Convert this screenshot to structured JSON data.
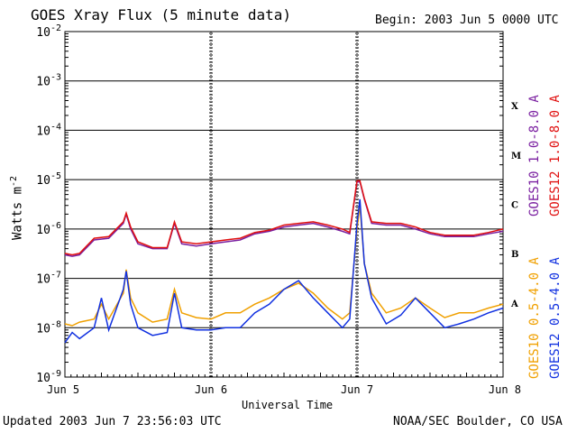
{
  "header": {
    "title": "GOES Xray Flux (5 minute data)",
    "begin": "Begin:  2003 Jun 5 0000 UTC"
  },
  "footer": {
    "updated": "Updated 2003 Jun  7 23:56:03 UTC",
    "credit": "NOAA/SEC Boulder, CO USA"
  },
  "colors": {
    "goes10_long": "#7a1fa0",
    "goes12_long": "#e01010",
    "goes10_short": "#f0a000",
    "goes12_short": "#1030e0"
  },
  "chart_data": {
    "type": "line",
    "title": "GOES Xray Flux (5 minute data)",
    "xlabel": "Universal Time",
    "ylabel": "Watts m",
    "ylabel_sup": "-2",
    "y_scale": "log",
    "ylim": [
      1e-09,
      0.01
    ],
    "y_ticks": [
      {
        "base": "10",
        "exp": "-9",
        "value": 1e-09
      },
      {
        "base": "10",
        "exp": "-8",
        "value": 1e-08
      },
      {
        "base": "10",
        "exp": "-7",
        "value": 1e-07
      },
      {
        "base": "10",
        "exp": "-6",
        "value": 1e-06
      },
      {
        "base": "10",
        "exp": "-5",
        "value": 1e-05
      },
      {
        "base": "10",
        "exp": "-4",
        "value": 0.0001
      },
      {
        "base": "10",
        "exp": "-3",
        "value": 0.001
      },
      {
        "base": "10",
        "exp": "-2",
        "value": 0.01
      }
    ],
    "x_ticks": [
      "Jun 5",
      "Jun 6",
      "Jun 7",
      "Jun 8"
    ],
    "x_range_days": [
      0,
      3
    ],
    "flare_classes": [
      {
        "label": "A",
        "lo": 1e-08,
        "hi": 1e-07
      },
      {
        "label": "B",
        "lo": 1e-07,
        "hi": 1e-06
      },
      {
        "label": "C",
        "lo": 1e-06,
        "hi": 1e-05
      },
      {
        "label": "M",
        "lo": 1e-05,
        "hi": 0.0001
      },
      {
        "label": "X",
        "lo": 0.0001,
        "hi": 0.001
      }
    ],
    "series": [
      {
        "name": "GOES10 1.0-8.0 A",
        "color": "#7a1fa0",
        "x": [
          0,
          0.05,
          0.1,
          0.2,
          0.3,
          0.4,
          0.42,
          0.45,
          0.5,
          0.6,
          0.7,
          0.75,
          0.8,
          0.9,
          1.0,
          1.1,
          1.2,
          1.3,
          1.4,
          1.5,
          1.6,
          1.7,
          1.8,
          1.9,
          1.95,
          2.0,
          2.02,
          2.05,
          2.1,
          2.2,
          2.3,
          2.4,
          2.5,
          2.6,
          2.7,
          2.8,
          2.9,
          3.0
        ],
        "values": [
          3e-07,
          2.8e-07,
          3e-07,
          6e-07,
          6.5e-07,
          1.3e-06,
          2e-06,
          1e-06,
          5e-07,
          4e-07,
          4e-07,
          1.3e-06,
          5e-07,
          4.5e-07,
          5e-07,
          5.5e-07,
          6e-07,
          8e-07,
          9e-07,
          1.1e-06,
          1.2e-06,
          1.3e-06,
          1.1e-06,
          9e-07,
          8e-07,
          9e-06,
          9e-06,
          4e-06,
          1.3e-06,
          1.2e-06,
          1.2e-06,
          1e-06,
          8e-07,
          7e-07,
          7e-07,
          7e-07,
          8e-07,
          9e-07
        ]
      },
      {
        "name": "GOES12 1.0-8.0 A",
        "color": "#e01010",
        "x": [
          0,
          0.05,
          0.1,
          0.2,
          0.3,
          0.4,
          0.42,
          0.45,
          0.5,
          0.6,
          0.7,
          0.75,
          0.8,
          0.9,
          1.0,
          1.1,
          1.2,
          1.3,
          1.4,
          1.5,
          1.6,
          1.7,
          1.8,
          1.9,
          1.95,
          2.0,
          2.02,
          2.05,
          2.1,
          2.2,
          2.3,
          2.4,
          2.5,
          2.6,
          2.7,
          2.8,
          2.9,
          3.0
        ],
        "values": [
          3.2e-07,
          3e-07,
          3.2e-07,
          6.5e-07,
          7e-07,
          1.4e-06,
          2.1e-06,
          1.1e-06,
          5.5e-07,
          4.2e-07,
          4.2e-07,
          1.4e-06,
          5.5e-07,
          5e-07,
          5.5e-07,
          6e-07,
          6.5e-07,
          8.5e-07,
          9.5e-07,
          1.2e-06,
          1.3e-06,
          1.4e-06,
          1.2e-06,
          1e-06,
          8.5e-07,
          9.5e-06,
          9.5e-06,
          4.2e-06,
          1.4e-06,
          1.3e-06,
          1.3e-06,
          1.1e-06,
          8.5e-07,
          7.5e-07,
          7.5e-07,
          7.5e-07,
          8.5e-07,
          1e-06
        ]
      },
      {
        "name": "GOES10 0.5-4.0 A",
        "color": "#f0a000",
        "x": [
          0,
          0.05,
          0.1,
          0.2,
          0.25,
          0.3,
          0.4,
          0.42,
          0.45,
          0.5,
          0.6,
          0.7,
          0.75,
          0.8,
          0.9,
          1.0,
          1.1,
          1.2,
          1.3,
          1.4,
          1.5,
          1.6,
          1.7,
          1.8,
          1.9,
          1.95,
          2.0,
          2.02,
          2.05,
          2.1,
          2.2,
          2.3,
          2.4,
          2.5,
          2.6,
          2.7,
          2.8,
          2.9,
          3.0
        ],
        "values": [
          1.2e-08,
          1.1e-08,
          1.3e-08,
          1.5e-08,
          3e-08,
          1.5e-08,
          5e-08,
          1.5e-07,
          4e-08,
          2e-08,
          1.3e-08,
          1.5e-08,
          6e-08,
          2e-08,
          1.6e-08,
          1.5e-08,
          2e-08,
          2e-08,
          3e-08,
          4e-08,
          6e-08,
          8e-08,
          5e-08,
          2.5e-08,
          1.5e-08,
          2e-08,
          1e-06,
          3e-06,
          2e-07,
          5e-08,
          2e-08,
          2.5e-08,
          4e-08,
          2.5e-08,
          1.6e-08,
          2e-08,
          2e-08,
          2.5e-08,
          3e-08
        ]
      },
      {
        "name": "GOES12 0.5-4.0 A",
        "color": "#1030e0",
        "x": [
          0,
          0.05,
          0.1,
          0.2,
          0.25,
          0.3,
          0.4,
          0.42,
          0.45,
          0.5,
          0.6,
          0.7,
          0.75,
          0.8,
          0.9,
          1.0,
          1.1,
          1.2,
          1.3,
          1.4,
          1.5,
          1.6,
          1.7,
          1.8,
          1.9,
          1.95,
          2.0,
          2.02,
          2.05,
          2.1,
          2.2,
          2.3,
          2.4,
          2.5,
          2.6,
          2.7,
          2.8,
          2.9,
          3.0
        ],
        "values": [
          5e-09,
          8e-09,
          6e-09,
          1e-08,
          4e-08,
          9e-09,
          6e-08,
          1.4e-07,
          3e-08,
          1e-08,
          7e-09,
          8e-09,
          5e-08,
          1e-08,
          9e-09,
          9e-09,
          1e-08,
          1e-08,
          2e-08,
          3e-08,
          6e-08,
          9e-08,
          4e-08,
          2e-08,
          1e-08,
          1.5e-08,
          1.3e-06,
          4e-06,
          2e-07,
          4e-08,
          1.2e-08,
          1.8e-08,
          4e-08,
          2e-08,
          1e-08,
          1.2e-08,
          1.5e-08,
          2e-08,
          2.5e-08
        ]
      }
    ]
  }
}
